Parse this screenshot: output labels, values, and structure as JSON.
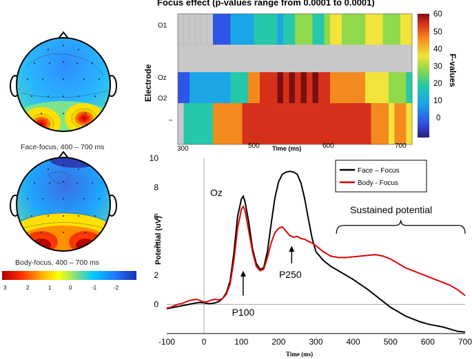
{
  "topomaps": [
    {
      "caption": "Face-focus, 400 – 700 ms",
      "pattern": "strong bilateral occipital"
    },
    {
      "caption": "Body-focus, 400 – 700 ms",
      "pattern": "broad occipital"
    }
  ],
  "topo_colorbar": {
    "ticks": [
      "3",
      "2",
      "1",
      "0",
      "-1",
      "-2"
    ],
    "colors": [
      "#b40000",
      "#ff2a00",
      "#ffb400",
      "#ffff00",
      "#7fe07f",
      "#00c8ff",
      "#1e78ff",
      "#1a2fb0"
    ]
  },
  "heatmap": {
    "title": "Focus effect (p-values range from 0.0001 to 0.0001)",
    "ylabel": "Electrode",
    "xlabel": "Time (ms)",
    "xticks": [
      "300",
      "500",
      "600",
      "700"
    ],
    "rows": [
      "O1",
      "Oz",
      "O2",
      "Oz"
    ],
    "colorbar_label": "F-values",
    "colorbar_ticks": [
      "60",
      "50",
      "40",
      "30",
      "20",
      "10",
      "0"
    ]
  },
  "chart_data": {
    "type": "line",
    "title": "",
    "xlabel": "Time (ms)",
    "ylabel": "Potential (uV)",
    "xlim": [
      -100,
      700
    ],
    "ylim": [
      -2,
      10
    ],
    "xticks": [
      -100,
      0,
      100,
      200,
      300,
      400,
      500,
      600,
      700
    ],
    "yticks": [
      0,
      2,
      4,
      6,
      8,
      10
    ],
    "channel_label": "Oz",
    "legend_position": "top-right",
    "annotations": [
      {
        "text": "P100",
        "x": 105
      },
      {
        "text": "P250",
        "x": 235
      },
      {
        "text": "Sustained potential",
        "x_from": 355,
        "x_to": 700
      }
    ],
    "series": [
      {
        "name": "Face – Focus",
        "color": "#000000",
        "x": [
          -100,
          -90,
          -80,
          -70,
          -60,
          -50,
          -40,
          -30,
          -20,
          -10,
          0,
          10,
          20,
          30,
          40,
          50,
          60,
          70,
          80,
          90,
          100,
          105,
          110,
          120,
          130,
          140,
          150,
          160,
          170,
          180,
          190,
          200,
          210,
          220,
          230,
          240,
          250,
          260,
          270,
          280,
          290,
          300,
          320,
          340,
          360,
          380,
          400,
          420,
          440,
          460,
          480,
          500,
          520,
          540,
          560,
          580,
          600,
          620,
          640,
          660,
          680,
          700
        ],
        "y": [
          -0.3,
          -0.25,
          -0.2,
          -0.15,
          -0.1,
          -0.05,
          0.0,
          0.05,
          0.1,
          0.12,
          0.1,
          0.05,
          0.05,
          0.1,
          0.2,
          0.4,
          0.8,
          1.6,
          3.5,
          6.0,
          7.2,
          7.4,
          7.0,
          5.6,
          3.8,
          2.8,
          2.4,
          2.5,
          3.6,
          5.5,
          7.3,
          8.4,
          8.9,
          9.05,
          9.1,
          9.05,
          8.9,
          8.3,
          7.2,
          5.8,
          4.5,
          3.6,
          3.0,
          2.6,
          2.3,
          2.0,
          1.7,
          1.35,
          1.0,
          0.6,
          0.2,
          -0.2,
          -0.5,
          -0.8,
          -1.0,
          -1.2,
          -1.35,
          -1.45,
          -1.55,
          -1.7,
          -1.85,
          -1.9
        ]
      },
      {
        "name": "Body - Focus",
        "color": "#e00000",
        "x": [
          -100,
          -90,
          -80,
          -70,
          -60,
          -50,
          -40,
          -30,
          -20,
          -10,
          0,
          10,
          20,
          30,
          40,
          50,
          60,
          70,
          80,
          90,
          100,
          105,
          110,
          120,
          130,
          140,
          150,
          160,
          170,
          180,
          190,
          200,
          210,
          220,
          230,
          240,
          250,
          260,
          270,
          280,
          290,
          300,
          320,
          340,
          360,
          380,
          400,
          420,
          440,
          460,
          480,
          500,
          520,
          540,
          560,
          580,
          600,
          620,
          640,
          660,
          680,
          700
        ],
        "y": [
          -0.25,
          -0.2,
          -0.1,
          0.0,
          0.05,
          0.15,
          0.25,
          0.3,
          0.35,
          0.25,
          0.15,
          0.2,
          0.3,
          0.35,
          0.3,
          0.4,
          0.7,
          1.4,
          3.0,
          5.2,
          6.5,
          6.7,
          6.4,
          5.0,
          3.6,
          2.6,
          2.3,
          2.4,
          3.2,
          4.2,
          4.9,
          5.2,
          5.3,
          5.0,
          4.7,
          4.6,
          4.65,
          4.5,
          4.45,
          4.3,
          4.2,
          4.0,
          3.6,
          3.3,
          3.2,
          3.2,
          3.25,
          3.3,
          3.35,
          3.4,
          3.3,
          3.1,
          2.8,
          2.5,
          2.3,
          2.1,
          1.9,
          1.7,
          1.5,
          1.3,
          1.0,
          0.6
        ]
      }
    ]
  }
}
